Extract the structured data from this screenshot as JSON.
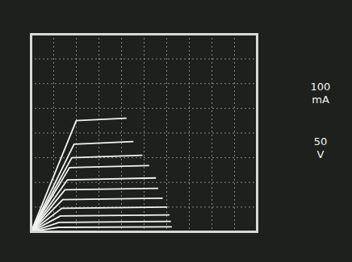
{
  "chart_data": {
    "type": "line",
    "annotations": [
      "100 mA",
      "50 V"
    ],
    "xlim": [
      0,
      500
    ],
    "ylim": [
      0,
      800
    ],
    "xticks": [
      0,
      50,
      100,
      150,
      200,
      250,
      300,
      350,
      400,
      450,
      500
    ],
    "yticks": [
      0,
      100,
      200,
      300,
      400,
      500,
      600,
      700,
      800
    ],
    "grid": true,
    "tick_labels": false,
    "color": "#f2f2f2",
    "series": [
      {
        "x": [
          0,
          100,
          210
        ],
        "values": [
          0,
          450,
          460
        ]
      },
      {
        "x": [
          0,
          95,
          225
        ],
        "values": [
          0,
          355,
          365
        ]
      },
      {
        "x": [
          0,
          90,
          245
        ],
        "values": [
          0,
          300,
          310
        ]
      },
      {
        "x": [
          0,
          85,
          260
        ],
        "values": [
          0,
          260,
          268
        ]
      },
      {
        "x": [
          0,
          80,
          275
        ],
        "values": [
          0,
          210,
          218
        ]
      },
      {
        "x": [
          0,
          75,
          280
        ],
        "values": [
          0,
          170,
          176
        ]
      },
      {
        "x": [
          0,
          70,
          290
        ],
        "values": [
          0,
          130,
          136
        ]
      },
      {
        "x": [
          0,
          68,
          300
        ],
        "values": [
          0,
          95,
          100
        ]
      },
      {
        "x": [
          0,
          65,
          305
        ],
        "values": [
          0,
          64,
          68
        ]
      },
      {
        "x": [
          0,
          62,
          308
        ],
        "values": [
          0,
          38,
          42
        ]
      },
      {
        "x": [
          0,
          60,
          310
        ],
        "values": [
          0,
          18,
          20
        ]
      }
    ]
  }
}
